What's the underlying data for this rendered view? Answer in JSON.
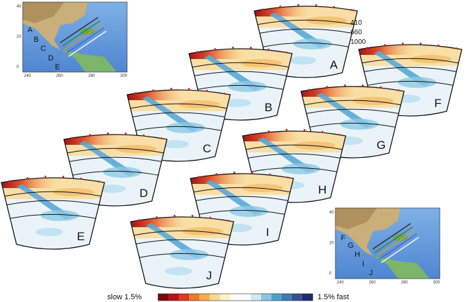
{
  "map_top": {
    "x_ticks": [
      "240",
      "260",
      "280",
      "300"
    ],
    "y_ticks": [
      "40",
      "20",
      "0"
    ],
    "profile_labels": [
      "A",
      "B",
      "C",
      "D",
      "E"
    ]
  },
  "map_bottom": {
    "x_ticks": [
      "240",
      "260",
      "280",
      "300"
    ],
    "y_ticks": [
      "40",
      "20",
      "0"
    ],
    "profile_labels": [
      "F",
      "G",
      "H",
      "I",
      "J"
    ]
  },
  "depth_labels": [
    "410",
    "660",
    "1000"
  ],
  "sections": [
    {
      "letter": "A"
    },
    {
      "letter": "B"
    },
    {
      "letter": "C"
    },
    {
      "letter": "D"
    },
    {
      "letter": "E"
    },
    {
      "letter": "F"
    },
    {
      "letter": "G"
    },
    {
      "letter": "H"
    },
    {
      "letter": "I"
    },
    {
      "letter": "J"
    }
  ],
  "colorbar": {
    "left_label": "slow 1.5%",
    "right_label": "1.5% fast",
    "colors": [
      "#7a0a0a",
      "#b8141a",
      "#dd3a20",
      "#ef7a25",
      "#f6ad4a",
      "#fbd98c",
      "#fdf3c8",
      "#ffffff",
      "#ffffff",
      "#cfe8f2",
      "#86c8e2",
      "#4aa4cf",
      "#3a7cb8",
      "#3a4f96",
      "#232a6a"
    ]
  }
}
